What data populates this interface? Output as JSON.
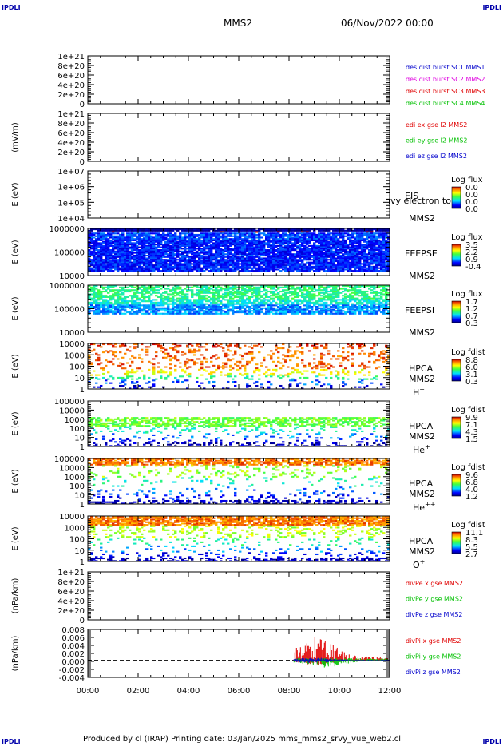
{
  "corner_marks": {
    "tl": "IPDLI",
    "tr": "IPDLI",
    "bl": "IPDLI",
    "br": "IPDLI"
  },
  "header": {
    "spacecraft": "MMS2",
    "date_time": "06/Nov/2022 00:00"
  },
  "footer": {
    "text": "Produced by cl (IRAP)   Printing date: 03/Jan/2025   mms_mms2_srvy_vue_web2.cl"
  },
  "colors": {
    "red": "#e00000",
    "magenta": "#e000e0",
    "green": "#00c000",
    "blue": "#0000cc",
    "purple": "#8000c0"
  },
  "chart_data": {
    "type": "heatmap",
    "x_ticks": [
      "00:00",
      "02:00",
      "04:00",
      "06:00",
      "08:00",
      "10:00",
      "12:00"
    ],
    "x_range_hours": [
      0,
      12
    ],
    "panels": [
      {
        "id": "p1",
        "kind": "line",
        "ylabel": "",
        "yticks": [
          "1e+21",
          "8e+20",
          "6e+20",
          "4e+20",
          "2e+20",
          "0"
        ],
        "legend": [
          {
            "text": "des dist burst SC1 MMS1",
            "color": "#0000cc"
          },
          {
            "text": "des dist burst SC2 MMS2",
            "color": "#e000e0"
          },
          {
            "text": "des dist burst SC3 MMS3",
            "color": "#e00000"
          },
          {
            "text": "des dist burst SC4 MMS4",
            "color": "#00c000"
          }
        ]
      },
      {
        "id": "p2",
        "kind": "line",
        "ylabel": "(mV/m)",
        "yticks": [
          "1e+21",
          "8e+20",
          "6e+20",
          "4e+20",
          "2e+20",
          "0"
        ],
        "legend": [
          {
            "text": "edi ex gse l2 MMS2",
            "color": "#e00000"
          },
          {
            "text": "edi ey gse l2 MMS2",
            "color": "#00c000"
          },
          {
            "text": "edi ez gse l2 MMS2",
            "color": "#0000cc"
          }
        ]
      },
      {
        "id": "p3",
        "kind": "spectrogram",
        "ylabel": "E (eV)",
        "yticks": [
          "1e+07",
          "1e+06",
          "1e+05",
          "1e+04"
        ],
        "labels": [
          "EIS",
          "MMS2"
        ],
        "overlay": "hvy electron to",
        "cbar_title": "Log flux",
        "cbar_ticks": [
          "0.0",
          "0.0",
          "0.0",
          "0.0"
        ],
        "empty": true
      },
      {
        "id": "p4",
        "kind": "spectrogram",
        "ylabel": "E (eV)",
        "yticks": [
          "1000000",
          "100000",
          "10000"
        ],
        "labels": [
          "FEEPSE",
          "MMS2"
        ],
        "cbar_title": "Log flux",
        "cbar_ticks": [
          "3.5",
          "2.2",
          "0.9",
          "-0.4"
        ]
      },
      {
        "id": "p5",
        "kind": "spectrogram",
        "ylabel": "E (eV)",
        "yticks": [
          "1000000",
          "100000",
          "10000"
        ],
        "labels": [
          "FEEPSI",
          "MMS2"
        ],
        "cbar_title": "Log flux",
        "cbar_ticks": [
          "1.7",
          "1.2",
          "0.7",
          "0.3"
        ]
      },
      {
        "id": "p6",
        "kind": "spectrogram",
        "ylabel": "E (eV)",
        "yticks": [
          "10000",
          "1000",
          "100",
          "10",
          "1"
        ],
        "labels": [
          "HPCA",
          "MMS2"
        ],
        "species": "H",
        "species_sup": "+",
        "cbar_title": "Log fdist",
        "cbar_ticks": [
          "8.8",
          "6.0",
          "3.1",
          "0.3"
        ]
      },
      {
        "id": "p7",
        "kind": "spectrogram",
        "ylabel": "E (eV)",
        "yticks": [
          "100000",
          "10000",
          "1000",
          "100",
          "10",
          "1"
        ],
        "labels": [
          "HPCA",
          "MMS2"
        ],
        "species": "He",
        "species_sup": "+",
        "cbar_title": "Log fdist",
        "cbar_ticks": [
          "9.9",
          "7.1",
          "4.3",
          "1.5"
        ]
      },
      {
        "id": "p8",
        "kind": "spectrogram",
        "ylabel": "E (eV)",
        "yticks": [
          "100000",
          "10000",
          "1000",
          "100",
          "10",
          "1"
        ],
        "labels": [
          "HPCA",
          "MMS2"
        ],
        "species": "He",
        "species_sup": "++",
        "cbar_title": "Log fdist",
        "cbar_ticks": [
          "9.6",
          "6.8",
          "4.0",
          "1.2"
        ]
      },
      {
        "id": "p9",
        "kind": "spectrogram",
        "ylabel": "E (eV)",
        "yticks": [
          "10000",
          "1000",
          "100",
          "10",
          "1"
        ],
        "labels": [
          "HPCA",
          "MMS2"
        ],
        "species": "O",
        "species_sup": "+",
        "cbar_title": "Log fdist",
        "cbar_ticks": [
          "11.1",
          "8.3",
          "5.5",
          "2.7"
        ]
      },
      {
        "id": "p10",
        "kind": "line",
        "ylabel": "(nPa/km)",
        "yticks": [
          "1e+21",
          "8e+20",
          "6e+20",
          "4e+20",
          "2e+20",
          "0"
        ],
        "legend": [
          {
            "text": "divPe x gse MMS2",
            "color": "#e00000"
          },
          {
            "text": "divPe y gse MMS2",
            "color": "#00c000"
          },
          {
            "text": "divPe z gse MMS2",
            "color": "#0000cc"
          }
        ]
      },
      {
        "id": "p11",
        "kind": "line",
        "ylabel": "(nPa/km)",
        "yticks": [
          "0.008",
          "0.006",
          "0.004",
          "0.002",
          "0.000",
          "-0.002",
          "-0.004"
        ],
        "yrange": [
          -0.005,
          0.009
        ],
        "legend": [
          {
            "text": "divPi x gse MMS2",
            "color": "#e00000"
          },
          {
            "text": "divPi y gse MMS2",
            "color": "#00c000"
          },
          {
            "text": "divPi z gse MMS2",
            "color": "#0000cc"
          }
        ],
        "data_start_hour": 8.2
      }
    ]
  }
}
